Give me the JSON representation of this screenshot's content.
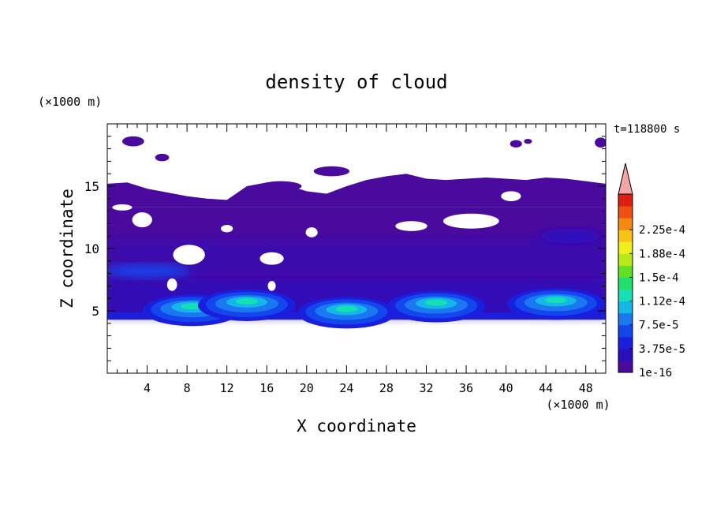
{
  "chart_data": {
    "type": "heatmap",
    "title": "density of cloud",
    "xlabel": "X coordinate",
    "ylabel": "Z coordinate",
    "x_unit": "(×1000 m)",
    "y_unit": "(×1000 m)",
    "time_label": "t=118800 s",
    "xlim": [
      0,
      50
    ],
    "ylim": [
      0,
      20
    ],
    "x_ticks": [
      "4",
      "8",
      "12",
      "16",
      "20",
      "24",
      "28",
      "32",
      "36",
      "40",
      "44",
      "48"
    ],
    "y_ticks": [
      "5",
      "10",
      "15"
    ],
    "colorbar": {
      "labels": [
        "1e-16",
        "3.75e-5",
        "7.5e-5",
        "1.12e-4",
        "1.5e-4",
        "1.88e-4",
        "2.25e-4"
      ],
      "levels": [
        "#4b0a9e",
        "#2a0fbf",
        "#1a1fdd",
        "#1446ee",
        "#1a78f0",
        "#15b7e8",
        "#13e0b4",
        "#1ee06a",
        "#62e022",
        "#b8ea18",
        "#eef01a",
        "#f8c414",
        "#f58a10",
        "#ee5010",
        "#dd1e10"
      ],
      "overflow_color": "#f4a5a8",
      "extend": "max"
    },
    "regions": {
      "main_cloud_layer": {
        "x": [
          0,
          50
        ],
        "z": [
          4.3,
          13.3
        ],
        "value": "1e-16 to 3.75e-5"
      },
      "upper_cloud": {
        "x": [
          0,
          50
        ],
        "z": [
          13.3,
          16.2
        ],
        "value": "1e-16"
      },
      "low_cores": [
        {
          "x": 8.5,
          "z": 5.3,
          "max_value": "1.12e-4"
        },
        {
          "x": 14,
          "z": 5.7,
          "max_value": "1.12e-4"
        },
        {
          "x": 24,
          "z": 5.1,
          "max_value": "9e-5"
        },
        {
          "x": 33,
          "z": 5.6,
          "max_value": "1.12e-4"
        },
        {
          "x": 45,
          "z": 5.8,
          "max_value": "1.12e-4"
        }
      ]
    }
  }
}
